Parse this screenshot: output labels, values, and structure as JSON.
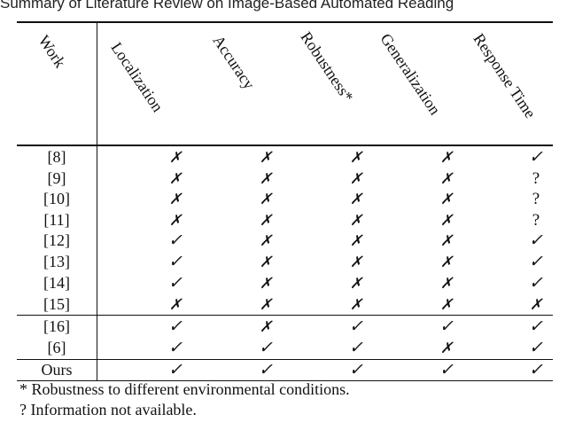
{
  "caption": "Summary of Literature Review on Image-Based Automated Reading",
  "columns": [
    "Work",
    "Localization",
    "Accuracy",
    "Robustness*",
    "Generalization",
    "Response Time"
  ],
  "symbols": {
    "check": "✓",
    "cross": "✗",
    "unknown": "?"
  },
  "rows": [
    {
      "work": "[8]",
      "values": [
        "✗",
        "✗",
        "✗",
        "✗",
        "✓"
      ]
    },
    {
      "work": "[9]",
      "values": [
        "✗",
        "✗",
        "✗",
        "✗",
        "?"
      ]
    },
    {
      "work": "[10]",
      "values": [
        "✗",
        "✗",
        "✗",
        "✗",
        "?"
      ]
    },
    {
      "work": "[11]",
      "values": [
        "✗",
        "✗",
        "✗",
        "✗",
        "?"
      ]
    },
    {
      "work": "[12]",
      "values": [
        "✓",
        "✗",
        "✗",
        "✗",
        "✓"
      ]
    },
    {
      "work": "[13]",
      "values": [
        "✓",
        "✗",
        "✗",
        "✗",
        "✓"
      ]
    },
    {
      "work": "[14]",
      "values": [
        "✓",
        "✗",
        "✗",
        "✗",
        "✓"
      ]
    },
    {
      "work": "[15]",
      "values": [
        "✗",
        "✗",
        "✗",
        "✗",
        "✗"
      ]
    },
    {
      "work": "[16]",
      "values": [
        "✓",
        "✗",
        "✓",
        "✓",
        "✓"
      ]
    },
    {
      "work": "[6]",
      "values": [
        "✓",
        "✓",
        "✓",
        "✗",
        "✓"
      ]
    },
    {
      "work": "Ours",
      "values": [
        "✓",
        "✓",
        "✓",
        "✓",
        "✓"
      ]
    }
  ],
  "footnotes": [
    "* Robustness to different environmental conditions.",
    "? Information not available."
  ]
}
